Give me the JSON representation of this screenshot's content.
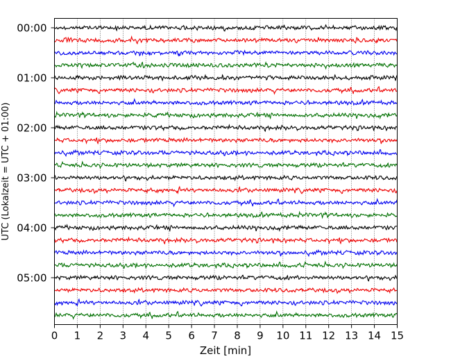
{
  "chart_data": {
    "type": "line",
    "title": "",
    "xlabel": "Zeit  [min]",
    "ylabel": "UTC (Lokalzeit = UTC + 01:00)",
    "xlim": [
      0,
      15
    ],
    "xticks": [
      "0",
      "1",
      "2",
      "3",
      "4",
      "5",
      "6",
      "7",
      "8",
      "9",
      "10",
      "11",
      "12",
      "13",
      "14",
      "15"
    ],
    "ytick_labels": [
      "00:00",
      "01:00",
      "02:00",
      "03:00",
      "04:00",
      "05:00"
    ],
    "traces_per_hour": 4,
    "minutes_per_trace": 15,
    "trace_count": 24,
    "trace_colors": [
      "#000000",
      "#ee0000",
      "#0000ee",
      "#007000"
    ],
    "grid": "vertical dotted lines at every minute",
    "series": [
      {
        "start": "00:00"
      },
      {
        "start": "00:15"
      },
      {
        "start": "00:30"
      },
      {
        "start": "00:45"
      },
      {
        "start": "01:00"
      },
      {
        "start": "01:15"
      },
      {
        "start": "01:30"
      },
      {
        "start": "01:45"
      },
      {
        "start": "02:00"
      },
      {
        "start": "02:15"
      },
      {
        "start": "02:30"
      },
      {
        "start": "02:45"
      },
      {
        "start": "03:00"
      },
      {
        "start": "03:15"
      },
      {
        "start": "03:30"
      },
      {
        "start": "03:45"
      },
      {
        "start": "04:00"
      },
      {
        "start": "04:15"
      },
      {
        "start": "04:30"
      },
      {
        "start": "04:45"
      },
      {
        "start": "05:00"
      },
      {
        "start": "05:15"
      },
      {
        "start": "05:30"
      },
      {
        "start": "05:45"
      }
    ]
  }
}
